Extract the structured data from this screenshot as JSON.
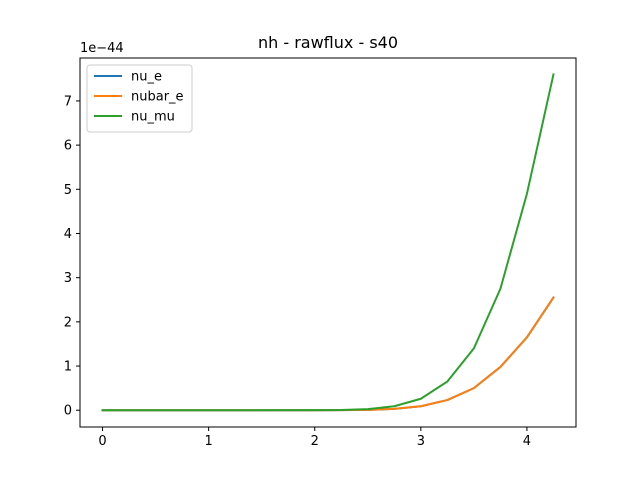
{
  "chart_data": {
    "type": "line",
    "title": "nh - rawflux - s40",
    "xlabel": "",
    "ylabel": "",
    "offset_label": "1e−44",
    "xlim": [
      -0.2125,
      4.4625
    ],
    "ylim": [
      -0.3796,
      7.9716
    ],
    "xticks": [
      0,
      1,
      2,
      3,
      4
    ],
    "xtick_labels": [
      "0",
      "1",
      "2",
      "3",
      "4"
    ],
    "yticks": [
      0,
      1,
      2,
      3,
      4,
      5,
      6,
      7
    ],
    "ytick_labels": [
      "0",
      "1",
      "2",
      "3",
      "4",
      "5",
      "6",
      "7"
    ],
    "grid": false,
    "legend_position": "upper-left",
    "series": [
      {
        "name": "nu_e",
        "color": "#1f77b4",
        "x": [
          0,
          0.5,
          1.0,
          1.5,
          2.0,
          2.25,
          2.5,
          2.75,
          3.0,
          3.25,
          3.5,
          3.75,
          4.0,
          4.25
        ],
        "y": [
          0,
          0,
          0,
          0,
          0.0005,
          0.002,
          0.008,
          0.03,
          0.09,
          0.23,
          0.5,
          0.98,
          1.65,
          2.55
        ]
      },
      {
        "name": "nubar_e",
        "color": "#ff7f0e",
        "x": [
          0,
          0.5,
          1.0,
          1.5,
          2.0,
          2.25,
          2.5,
          2.75,
          3.0,
          3.25,
          3.5,
          3.75,
          4.0,
          4.25
        ],
        "y": [
          0,
          0,
          0,
          0,
          0.0005,
          0.002,
          0.008,
          0.03,
          0.09,
          0.23,
          0.5,
          0.98,
          1.65,
          2.55
        ]
      },
      {
        "name": "nu_mu",
        "color": "#2ca02c",
        "x": [
          0,
          0.5,
          1.0,
          1.5,
          2.0,
          2.25,
          2.5,
          2.75,
          3.0,
          3.25,
          3.5,
          3.75,
          4.0,
          4.25
        ],
        "y": [
          0,
          0,
          0,
          0,
          0.001,
          0.006,
          0.025,
          0.09,
          0.26,
          0.65,
          1.4,
          2.75,
          4.9,
          7.6
        ]
      }
    ]
  }
}
